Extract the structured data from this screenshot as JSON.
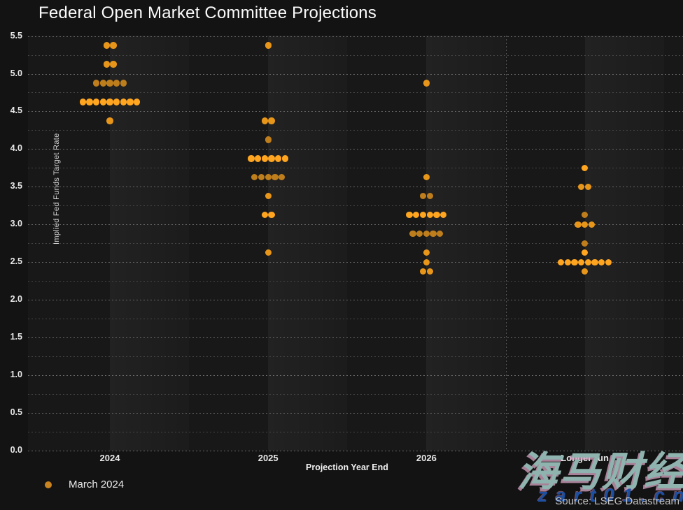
{
  "page": {
    "title": "Federal Open Market Committee Projections",
    "source": "Source: LSEG Datastream",
    "watermark_cjk": "海马财经",
    "watermark_url": "z a r t 0 1 . c n"
  },
  "legend": {
    "items": [
      {
        "label": "March 2024",
        "color": "#c98420"
      }
    ]
  },
  "chart_data": {
    "type": "scatter",
    "variant": "fomc-dot-plot",
    "title": "Federal Open Market Committee Projections",
    "xlabel": "Projection Year End",
    "ylabel": "Implied Fed Funds Target Rate",
    "ylim": [
      0.0,
      5.5
    ],
    "ytick_step": 0.5,
    "minor_grid_step": 0.25,
    "grid": "dotted-horizontal",
    "legend_position": "bottom-left",
    "categories": [
      "2024",
      "2025",
      "2026",
      "Longer run"
    ],
    "separator_before_category": "Longer run",
    "dot_colors": {
      "bright": "#ffa51f",
      "medium": "#e8961a",
      "dim": "#bf7e1c"
    },
    "series": [
      {
        "name": "March 2024",
        "columns": [
          {
            "category": "2024",
            "dots": [
              {
                "rate": 5.375,
                "count": 2,
                "shade": "medium"
              },
              {
                "rate": 5.125,
                "count": 2,
                "shade": "medium"
              },
              {
                "rate": 4.875,
                "count": 5,
                "shade": "dim"
              },
              {
                "rate": 4.625,
                "count": 9,
                "shade": "bright"
              },
              {
                "rate": 4.375,
                "count": 1,
                "shade": "medium"
              }
            ]
          },
          {
            "category": "2025",
            "dots": [
              {
                "rate": 5.375,
                "count": 1,
                "shade": "medium"
              },
              {
                "rate": 4.375,
                "count": 2,
                "shade": "medium"
              },
              {
                "rate": 4.125,
                "count": 1,
                "shade": "dim"
              },
              {
                "rate": 3.875,
                "count": 6,
                "shade": "bright"
              },
              {
                "rate": 3.625,
                "count": 5,
                "shade": "dim"
              },
              {
                "rate": 3.375,
                "count": 1,
                "shade": "medium"
              },
              {
                "rate": 3.125,
                "count": 2,
                "shade": "bright"
              },
              {
                "rate": 2.625,
                "count": 1,
                "shade": "medium"
              }
            ]
          },
          {
            "category": "2026",
            "dots": [
              {
                "rate": 4.875,
                "count": 1,
                "shade": "medium"
              },
              {
                "rate": 3.625,
                "count": 1,
                "shade": "medium"
              },
              {
                "rate": 3.375,
                "count": 2,
                "shade": "dim"
              },
              {
                "rate": 3.125,
                "count": 6,
                "shade": "bright"
              },
              {
                "rate": 2.875,
                "count": 5,
                "shade": "dim"
              },
              {
                "rate": 2.625,
                "count": 1,
                "shade": "medium"
              },
              {
                "rate": 2.5,
                "count": 1,
                "shade": "medium"
              },
              {
                "rate": 2.375,
                "count": 2,
                "shade": "medium"
              }
            ]
          },
          {
            "category": "Longer run",
            "dots": [
              {
                "rate": 3.75,
                "count": 1,
                "shade": "bright"
              },
              {
                "rate": 3.5,
                "count": 2,
                "shade": "medium"
              },
              {
                "rate": 3.125,
                "count": 1,
                "shade": "dim"
              },
              {
                "rate": 3.0,
                "count": 3,
                "shade": "medium"
              },
              {
                "rate": 2.75,
                "count": 1,
                "shade": "dim"
              },
              {
                "rate": 2.625,
                "count": 1,
                "shade": "bright"
              },
              {
                "rate": 2.5,
                "count": 8,
                "shade": "bright"
              },
              {
                "rate": 2.375,
                "count": 1,
                "shade": "medium"
              }
            ]
          }
        ]
      }
    ]
  }
}
